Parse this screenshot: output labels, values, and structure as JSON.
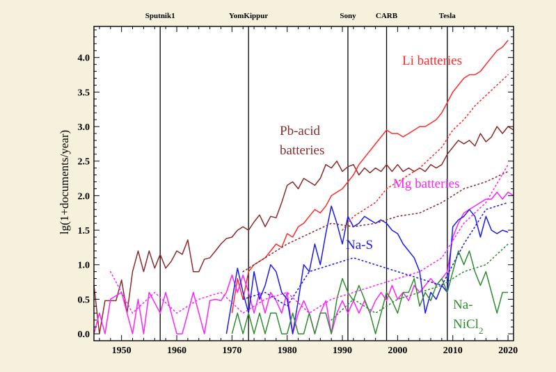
{
  "chart_data": {
    "type": "line",
    "title": "",
    "xlabel": "",
    "ylabel": "lg(1+documents/year)",
    "xlim": [
      1945,
      2021
    ],
    "ylim": [
      -0.1,
      4.45
    ],
    "x_ticks": [
      1950,
      1960,
      1970,
      1980,
      1990,
      2000,
      2010,
      2020
    ],
    "y_ticks": [
      0.0,
      0.5,
      1.0,
      1.5,
      2.0,
      2.5,
      3.0,
      3.5,
      4.0
    ],
    "grid": false,
    "events": [
      {
        "year": 1957,
        "label": "Sputnik1"
      },
      {
        "year": 1973,
        "label": "YomKippur"
      },
      {
        "year": 1991,
        "label": "Sony"
      },
      {
        "year": 1998,
        "label": "CARB"
      },
      {
        "year": 2009,
        "label": "Tesla"
      }
    ],
    "series": [
      {
        "name": "Pb-acid batteries",
        "label_lines": [
          "Pb-acid",
          "batteries"
        ],
        "color": "#8b2a2a",
        "x": [
          1945,
          1946,
          1947,
          1948,
          1949,
          1950,
          1951,
          1952,
          1953,
          1954,
          1955,
          1956,
          1957,
          1958,
          1959,
          1960,
          1961,
          1962,
          1963,
          1964,
          1965,
          1966,
          1967,
          1968,
          1969,
          1970,
          1971,
          1972,
          1973,
          1974,
          1975,
          1976,
          1977,
          1978,
          1979,
          1980,
          1981,
          1982,
          1983,
          1984,
          1985,
          1986,
          1987,
          1988,
          1989,
          1990,
          1991,
          1992,
          1993,
          1994,
          1995,
          1996,
          1997,
          1998,
          1999,
          2000,
          2001,
          2002,
          2003,
          2004,
          2005,
          2006,
          2007,
          2008,
          2009,
          2010,
          2011,
          2012,
          2013,
          2014,
          2015,
          2016,
          2017,
          2018,
          2019,
          2020,
          2021
        ],
        "values": [
          0.7,
          0.0,
          0.48,
          0.48,
          0.48,
          0.78,
          0.3,
          0.9,
          1.2,
          0.9,
          1.2,
          0.95,
          1.15,
          0.95,
          1.05,
          1.2,
          1.15,
          1.36,
          0.9,
          0.9,
          1.08,
          1.1,
          1.2,
          1.3,
          1.38,
          1.4,
          1.5,
          1.55,
          1.5,
          1.62,
          1.72,
          1.55,
          1.7,
          1.68,
          1.9,
          2.15,
          2.2,
          2.1,
          2.25,
          2.2,
          2.15,
          2.25,
          2.45,
          2.4,
          2.5,
          2.35,
          2.42,
          2.45,
          2.3,
          2.4,
          2.33,
          2.4,
          2.35,
          2.45,
          2.35,
          2.45,
          2.35,
          2.4,
          2.35,
          2.4,
          2.35,
          2.45,
          2.4,
          2.45,
          2.6,
          2.7,
          2.8,
          2.75,
          2.8,
          2.72,
          2.9,
          2.78,
          2.85,
          3.0,
          2.9,
          3.0,
          2.95
        ]
      },
      {
        "name": "Li batteries",
        "color": "#ff2a2a",
        "x": [
          1970,
          1971,
          1972,
          1973,
          1974,
          1975,
          1976,
          1977,
          1978,
          1979,
          1980,
          1981,
          1982,
          1983,
          1984,
          1985,
          1986,
          1987,
          1988,
          1989,
          1990,
          1991,
          1992,
          1993,
          1994,
          1995,
          1996,
          1997,
          1998,
          1999,
          2000,
          2001,
          2002,
          2003,
          2004,
          2005,
          2006,
          2007,
          2008,
          2009,
          2010,
          2011,
          2012,
          2013,
          2014,
          2015,
          2016,
          2017,
          2018,
          2019,
          2020
        ],
        "values": [
          0.3,
          0.8,
          0.5,
          0.9,
          1.0,
          1.05,
          1.1,
          1.2,
          1.3,
          1.25,
          1.45,
          1.4,
          1.55,
          1.6,
          1.7,
          1.8,
          1.75,
          1.85,
          2.0,
          2.05,
          2.1,
          2.2,
          2.3,
          2.45,
          2.55,
          2.65,
          2.75,
          2.85,
          2.95,
          2.9,
          2.9,
          2.85,
          2.9,
          2.95,
          3.0,
          3.0,
          3.05,
          3.1,
          3.2,
          3.35,
          3.5,
          3.6,
          3.7,
          3.75,
          3.75,
          3.8,
          3.9,
          4.0,
          4.1,
          4.15,
          4.25
        ]
      },
      {
        "name": "Mg batteries",
        "color": "#ff22ff",
        "x": [
          1945,
          1946,
          1947,
          1948,
          1949,
          1950,
          1951,
          1952,
          1953,
          1954,
          1955,
          1956,
          1957,
          1958,
          1959,
          1960,
          1961,
          1962,
          1963,
          1964,
          1965,
          1966,
          1967,
          1968,
          1969,
          1970,
          1971,
          1972,
          1973,
          1974,
          1975,
          1976,
          1977,
          1978,
          1979,
          1980,
          1981,
          1982,
          1983,
          1984,
          1985,
          1986,
          1987,
          1988,
          1989,
          1990,
          1991,
          1992,
          1993,
          1994,
          1995,
          1996,
          1997,
          1998,
          1999,
          2000,
          2001,
          2002,
          2003,
          2004,
          2005,
          2006,
          2007,
          2008,
          2009,
          2010,
          2011,
          2012,
          2013,
          2014,
          2015,
          2016,
          2017,
          2018,
          2019,
          2020,
          2021
        ],
        "values": [
          0.0,
          0.3,
          0.0,
          0.5,
          0.55,
          0.6,
          0.3,
          0.0,
          0.5,
          0.0,
          0.6,
          0.45,
          0.3,
          0.6,
          0.3,
          0.0,
          0.0,
          0.3,
          0.6,
          0.3,
          0.0,
          0.48,
          0.5,
          0.48,
          0.6,
          0.85,
          0.6,
          0.85,
          0.6,
          0.3,
          0.6,
          0.3,
          0.6,
          0.48,
          0.3,
          0.6,
          0.0,
          0.3,
          0.48,
          0.3,
          0.0,
          0.3,
          0.48,
          0.0,
          0.3,
          0.48,
          0.3,
          0.48,
          0.3,
          0.48,
          0.3,
          0.48,
          0.6,
          0.48,
          0.7,
          0.5,
          0.6,
          0.48,
          0.7,
          0.6,
          0.7,
          0.8,
          0.7,
          0.8,
          0.9,
          1.4,
          1.6,
          1.75,
          1.8,
          1.85,
          1.9,
          1.95,
          1.95,
          2.05,
          1.95,
          2.05,
          2.0
        ]
      },
      {
        "name": "Na-S",
        "color": "#1a1aee",
        "x": [
          1969,
          1970,
          1971,
          1972,
          1973,
          1974,
          1975,
          1976,
          1977,
          1978,
          1979,
          1980,
          1981,
          1982,
          1983,
          1984,
          1985,
          1986,
          1987,
          1988,
          1989,
          1990,
          1991,
          1992,
          1993,
          1994,
          1995,
          1996,
          1997,
          1998,
          1999,
          2000,
          2001,
          2002,
          2003,
          2004,
          2005,
          2006,
          2007,
          2008,
          2009,
          2010,
          2011,
          2012,
          2013,
          2014,
          2015,
          2016,
          2017,
          2018,
          2019,
          2020
        ],
        "values": [
          0.0,
          0.48,
          0.95,
          0.6,
          0.3,
          0.9,
          0.5,
          0.7,
          1.0,
          0.9,
          0.6,
          0.5,
          0.0,
          0.48,
          1.0,
          0.9,
          1.3,
          1.0,
          1.45,
          1.85,
          1.6,
          1.3,
          1.7,
          1.55,
          1.6,
          1.7,
          1.65,
          1.6,
          1.65,
          1.6,
          1.5,
          1.45,
          1.3,
          1.2,
          1.1,
          0.9,
          0.3,
          0.6,
          0.5,
          0.7,
          0.6,
          1.55,
          1.65,
          1.7,
          1.8,
          1.7,
          1.4,
          1.7,
          1.5,
          1.45,
          1.5,
          1.47
        ]
      },
      {
        "name": "Na-NiCl2",
        "label_lines": [
          "Na-",
          "NiCl2"
        ],
        "color": "#2e8b2e",
        "x": [
          1970,
          1971,
          1972,
          1973,
          1974,
          1975,
          1976,
          1977,
          1978,
          1979,
          1980,
          1981,
          1982,
          1983,
          1984,
          1985,
          1986,
          1987,
          1988,
          1989,
          1990,
          1991,
          1992,
          1993,
          1994,
          1995,
          1996,
          1997,
          1998,
          1999,
          2000,
          2001,
          2002,
          2003,
          2004,
          2005,
          2006,
          2007,
          2008,
          2009,
          2010,
          2011,
          2012,
          2013,
          2014,
          2015,
          2016,
          2017,
          2018,
          2019,
          2020
        ],
        "values": [
          0.0,
          0.3,
          0.0,
          0.3,
          0.0,
          0.3,
          0.0,
          0.3,
          0.3,
          0.0,
          0.0,
          0.3,
          0.0,
          0.0,
          0.3,
          0.0,
          0.3,
          0.3,
          0.0,
          0.5,
          0.8,
          0.6,
          0.48,
          0.7,
          0.5,
          0.3,
          0.0,
          0.3,
          0.6,
          0.48,
          0.3,
          0.6,
          0.6,
          0.8,
          0.4,
          0.6,
          0.48,
          0.7,
          0.8,
          0.6,
          0.9,
          1.2,
          1.0,
          1.2,
          0.9,
          0.7,
          0.9,
          0.6,
          0.3,
          0.6,
          0.6
        ]
      },
      {
        "name": "Li batteries (dotted)",
        "color": "#ff2a2a",
        "dotted": true,
        "x": [
          1990,
          1992,
          1994,
          1996,
          1998,
          2000,
          2002,
          2004,
          2006,
          2008,
          2010,
          2012,
          2014,
          2016,
          2018,
          2020
        ],
        "values": [
          1.5,
          1.7,
          1.8,
          1.9,
          2.1,
          2.2,
          2.3,
          2.4,
          2.55,
          2.7,
          2.95,
          3.1,
          3.3,
          3.45,
          3.6,
          3.75
        ]
      },
      {
        "name": "Pb-acid (dotted)",
        "color": "#8b2a2a",
        "dotted": true,
        "x": [
          1972,
          1976,
          1980,
          1984,
          1988,
          1992,
          1996,
          2000,
          2004,
          2008,
          2012,
          2016,
          2020
        ],
        "values": [
          0.9,
          1.1,
          1.3,
          1.45,
          1.6,
          1.55,
          1.6,
          1.7,
          1.75,
          1.9,
          2.1,
          2.2,
          2.35
        ]
      },
      {
        "name": "Mg (dotted)",
        "color": "#ff22ff",
        "dotted": true,
        "x": [
          1948,
          1952,
          1956,
          1960,
          1964,
          1968,
          1972,
          1976,
          1980,
          1984,
          1988,
          1992,
          1996,
          2000,
          2004,
          2008,
          2012,
          2016,
          2020
        ],
        "values": [
          0.9,
          0.3,
          0.6,
          0.3,
          0.5,
          0.6,
          0.3,
          0.5,
          0.6,
          0.3,
          0.5,
          0.6,
          0.7,
          0.8,
          0.9,
          1.1,
          1.6,
          1.9,
          2.45
        ]
      },
      {
        "name": "Na-S (dotted)",
        "color": "#1a1aee",
        "dotted": true,
        "x": [
          1972,
          1976,
          1980,
          1984,
          1988,
          1992,
          1996,
          2000,
          2004,
          2008,
          2012,
          2016,
          2020
        ],
        "values": [
          0.5,
          0.6,
          0.4,
          0.9,
          1.0,
          1.1,
          1.0,
          0.9,
          0.8,
          0.7,
          1.3,
          1.8,
          1.9
        ]
      },
      {
        "name": "Na-NiCl2 (dotted)",
        "color": "#2e8b2e",
        "dotted": true,
        "x": [
          1988,
          1992,
          1996,
          2000,
          2004,
          2008,
          2012,
          2016,
          2020
        ],
        "values": [
          0.2,
          0.5,
          0.3,
          0.5,
          0.6,
          0.7,
          0.9,
          1.0,
          1.3
        ]
      }
    ]
  }
}
